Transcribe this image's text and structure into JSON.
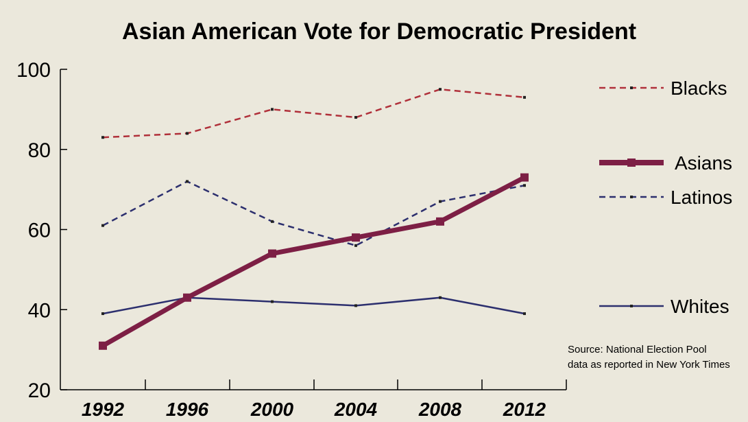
{
  "chart_data": {
    "type": "line",
    "title": "Asian American Vote for Democratic President",
    "xlabel": "",
    "ylabel": "",
    "x": [
      "1992",
      "1996",
      "2000",
      "2004",
      "2008",
      "2012"
    ],
    "ylim": [
      20,
      100
    ],
    "yticks": [
      "20",
      "40",
      "60",
      "80",
      "100"
    ],
    "grid": false,
    "legend_position": "right",
    "series": [
      {
        "name": "Blacks",
        "values": [
          83,
          84,
          90,
          88,
          95,
          93
        ],
        "color": "#b0303a",
        "style": "dashed"
      },
      {
        "name": "Asians",
        "values": [
          31,
          43,
          54,
          58,
          62,
          73
        ],
        "color": "#7d1f45",
        "style": "thick"
      },
      {
        "name": "Latinos",
        "values": [
          61,
          72,
          62,
          56,
          67,
          71
        ],
        "color": "#2c2f6e",
        "style": "dashed"
      },
      {
        "name": "Whites",
        "values": [
          39,
          43,
          42,
          41,
          43,
          39
        ],
        "color": "#2c2f6e",
        "style": "solid"
      }
    ],
    "annotations": {
      "source_line1": "Source: National Election Pool",
      "source_line2": "data as reported in New York Times"
    }
  }
}
